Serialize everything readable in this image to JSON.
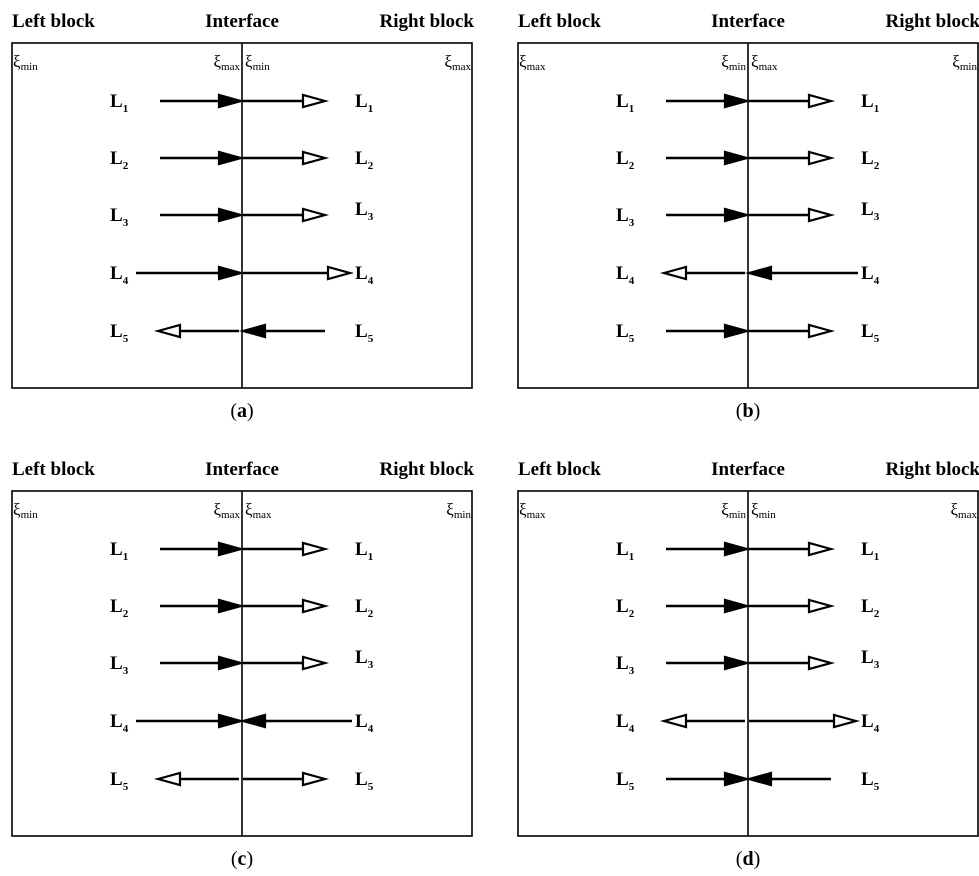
{
  "panels": [
    {
      "id": "a",
      "caption_label": "a",
      "header": {
        "left": "Left block",
        "center": "Interface",
        "right": "Right block"
      },
      "xi": {
        "left_outer": "min",
        "left_interface": "max",
        "right_interface": "min",
        "right_outer": "max"
      },
      "rows": [
        {
          "left_label": "L",
          "left_sub": "1",
          "right_label": "L",
          "right_sub": "1",
          "left_arrow": "to-interface",
          "right_arrow": "away-from-interface"
        },
        {
          "left_label": "L",
          "left_sub": "2",
          "right_label": "L",
          "right_sub": "2",
          "left_arrow": "to-interface",
          "right_arrow": "away-from-interface"
        },
        {
          "left_label": "L",
          "left_sub": "3",
          "right_label": "L",
          "right_sub": "3",
          "left_arrow": "to-interface",
          "right_arrow": "away-from-interface"
        },
        {
          "left_label": "L",
          "left_sub": "4",
          "right_label": "L",
          "right_sub": "4",
          "left_arrow": "to-interface",
          "right_arrow": "away-from-interface"
        },
        {
          "left_label": "L",
          "left_sub": "5",
          "right_label": "L",
          "right_sub": "5",
          "left_arrow": "away-from-interface",
          "right_arrow": "to-interface"
        }
      ]
    },
    {
      "id": "b",
      "caption_label": "b",
      "header": {
        "left": "Left block",
        "center": "Interface",
        "right": "Right block"
      },
      "xi": {
        "left_outer": "max",
        "left_interface": "min",
        "right_interface": "max",
        "right_outer": "min"
      },
      "rows": [
        {
          "left_label": "L",
          "left_sub": "1",
          "right_label": "L",
          "right_sub": "1",
          "left_arrow": "to-interface",
          "right_arrow": "away-from-interface"
        },
        {
          "left_label": "L",
          "left_sub": "2",
          "right_label": "L",
          "right_sub": "2",
          "left_arrow": "to-interface",
          "right_arrow": "away-from-interface"
        },
        {
          "left_label": "L",
          "left_sub": "3",
          "right_label": "L",
          "right_sub": "3",
          "left_arrow": "to-interface",
          "right_arrow": "away-from-interface"
        },
        {
          "left_label": "L",
          "left_sub": "4",
          "right_label": "L",
          "right_sub": "4",
          "left_arrow": "away-from-interface",
          "right_arrow": "to-interface"
        },
        {
          "left_label": "L",
          "left_sub": "5",
          "right_label": "L",
          "right_sub": "5",
          "left_arrow": "to-interface",
          "right_arrow": "away-from-interface"
        }
      ]
    },
    {
      "id": "c",
      "caption_label": "c",
      "header": {
        "left": "Left block",
        "center": "Interface",
        "right": "Right block"
      },
      "xi": {
        "left_outer": "min",
        "left_interface": "max",
        "right_interface": "max",
        "right_outer": "min"
      },
      "rows": [
        {
          "left_label": "L",
          "left_sub": "1",
          "right_label": "L",
          "right_sub": "1",
          "left_arrow": "to-interface",
          "right_arrow": "away-from-interface"
        },
        {
          "left_label": "L",
          "left_sub": "2",
          "right_label": "L",
          "right_sub": "2",
          "left_arrow": "to-interface",
          "right_arrow": "away-from-interface"
        },
        {
          "left_label": "L",
          "left_sub": "3",
          "right_label": "L",
          "right_sub": "3",
          "left_arrow": "to-interface",
          "right_arrow": "away-from-interface"
        },
        {
          "left_label": "L",
          "left_sub": "4",
          "right_label": "L",
          "right_sub": "4",
          "left_arrow": "to-interface",
          "right_arrow": "to-interface"
        },
        {
          "left_label": "L",
          "left_sub": "5",
          "right_label": "L",
          "right_sub": "5",
          "left_arrow": "away-from-interface",
          "right_arrow": "away-from-interface"
        }
      ]
    },
    {
      "id": "d",
      "caption_label": "d",
      "header": {
        "left": "Left block",
        "center": "Interface",
        "right": "Right block"
      },
      "xi": {
        "left_outer": "max",
        "left_interface": "min",
        "right_interface": "min",
        "right_outer": "max"
      },
      "rows": [
        {
          "left_label": "L",
          "left_sub": "1",
          "right_label": "L",
          "right_sub": "1",
          "left_arrow": "to-interface",
          "right_arrow": "away-from-interface"
        },
        {
          "left_label": "L",
          "left_sub": "2",
          "right_label": "L",
          "right_sub": "2",
          "left_arrow": "to-interface",
          "right_arrow": "away-from-interface"
        },
        {
          "left_label": "L",
          "left_sub": "3",
          "right_label": "L",
          "right_sub": "3",
          "left_arrow": "to-interface",
          "right_arrow": "away-from-interface"
        },
        {
          "left_label": "L",
          "left_sub": "4",
          "right_label": "L",
          "right_sub": "4",
          "left_arrow": "away-from-interface",
          "right_arrow": "away-from-interface"
        },
        {
          "left_label": "L",
          "left_sub": "5",
          "right_label": "L",
          "right_sub": "5",
          "left_arrow": "to-interface",
          "right_arrow": "to-interface"
        }
      ]
    }
  ],
  "xi_symbol": "ξ",
  "style": {
    "line_color": "#000000",
    "background": "#ffffff"
  }
}
